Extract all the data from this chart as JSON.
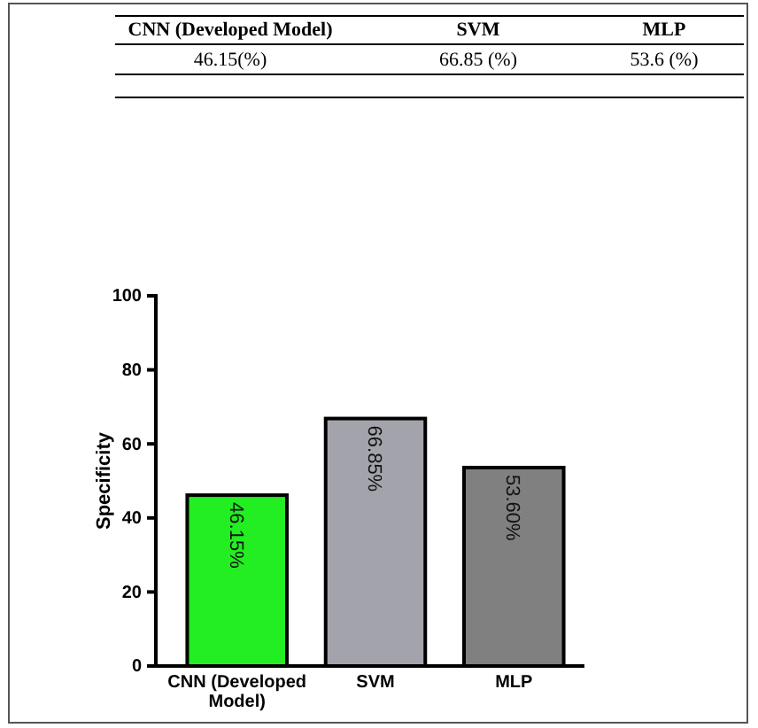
{
  "chart_data": {
    "type": "bar",
    "ylabel": "Specificity",
    "categories": [
      "CNN (Developed Model)",
      "SVM",
      "MLP"
    ],
    "values": [
      46.15,
      66.85,
      53.6
    ],
    "colors": [
      "#22ee22",
      "#a3a3ab",
      "#808080"
    ],
    "value_labels": [
      "46.15%",
      "66.85%",
      "53.60%"
    ],
    "ylim": [
      0,
      100
    ],
    "yticks": [
      0,
      20,
      40,
      60,
      80,
      100
    ],
    "grid": false,
    "annotations": [
      "CNN (Developed Model)",
      "SVM",
      "MLP",
      "46.15(%)",
      "66.85 (%)",
      "53.6 (%)"
    ]
  }
}
